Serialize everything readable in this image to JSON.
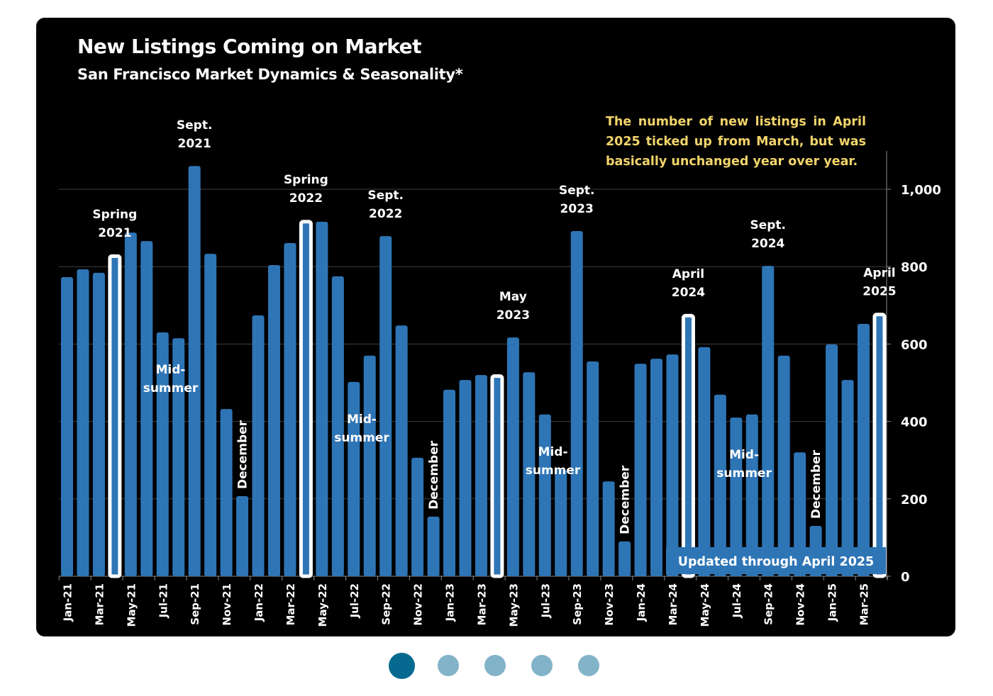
{
  "colors": {
    "background": "#000000",
    "bar": "#2e75b6",
    "highlight_bar": "#ffffff",
    "callout_text": "#f2d46b",
    "gridline": "#404040",
    "dot_active": "#066a90",
    "dot_inactive": "#82b3c8"
  },
  "pagination": {
    "count": 5,
    "active_index": 0
  },
  "chart_data": {
    "type": "bar",
    "title": "New Listings Coming on Market",
    "subtitle": "San Francisco Market Dynamics & Seasonality*",
    "callout": "The number of new listings in April 2025 ticked up from March, but was basically unchanged year over year.",
    "footer_banner": "Updated through April 2025",
    "xlabel": "",
    "ylabel": "",
    "ylim": [
      0,
      1100
    ],
    "y_axis_position": "right",
    "y_ticks": [
      0,
      200,
      400,
      600,
      800,
      1000
    ],
    "y_tick_labels": [
      "0",
      "200",
      "400",
      "600",
      "800",
      "1,000"
    ],
    "grid": true,
    "categories": [
      "Jan-21",
      "Feb-21",
      "Mar-21",
      "Apr-21",
      "May-21",
      "Jun-21",
      "Jul-21",
      "Aug-21",
      "Sep-21",
      "Oct-21",
      "Nov-21",
      "Dec-21",
      "Jan-22",
      "Feb-22",
      "Mar-22",
      "Apr-22",
      "May-22",
      "Jun-22",
      "Jul-22",
      "Aug-22",
      "Sep-22",
      "Oct-22",
      "Nov-22",
      "Dec-22",
      "Jan-23",
      "Feb-23",
      "Mar-23",
      "Apr-23",
      "May-23",
      "Jun-23",
      "Jul-23",
      "Aug-23",
      "Sep-23",
      "Oct-23",
      "Nov-23",
      "Dec-23",
      "Jan-24",
      "Feb-24",
      "Mar-24",
      "Apr-24",
      "May-24",
      "Jun-24",
      "Jul-24",
      "Aug-24",
      "Sep-24",
      "Oct-24",
      "Nov-24",
      "Dec-24",
      "Jan-25",
      "Feb-25",
      "Mar-25",
      "Apr-25"
    ],
    "x_tick_labels_every": 2,
    "values": [
      773,
      793,
      784,
      830,
      888,
      866,
      630,
      615,
      1060,
      833,
      432,
      207,
      674,
      804,
      861,
      919,
      916,
      775,
      502,
      570,
      879,
      648,
      306,
      154,
      482,
      507,
      520,
      520,
      617,
      527,
      418,
      275,
      892,
      555,
      245,
      90,
      549,
      562,
      573,
      676,
      592,
      469,
      410,
      418,
      802,
      570,
      320,
      130,
      599,
      507,
      652,
      679
    ],
    "highlighted": [
      "Apr-21",
      "Apr-22",
      "Apr-23",
      "Apr-24",
      "Apr-25"
    ],
    "annotations": [
      {
        "text": "Spring\n2021",
        "category": "Apr-21",
        "rotated": false
      },
      {
        "text": "Sept.\n2021",
        "category": "Sep-21",
        "rotated": false
      },
      {
        "text": "Mid-\nsummer",
        "category": "Jul-21",
        "rotated": false,
        "placement": "inside"
      },
      {
        "text": "December",
        "category": "Dec-21",
        "rotated": true
      },
      {
        "text": "Spring\n2022",
        "category": "Apr-22",
        "rotated": false
      },
      {
        "text": "Sept.\n2022",
        "category": "Sep-22",
        "rotated": false
      },
      {
        "text": "Mid-\nsummer",
        "category": "Jul-22",
        "rotated": false,
        "placement": "inside"
      },
      {
        "text": "December",
        "category": "Dec-22",
        "rotated": true
      },
      {
        "text": "May\n2023",
        "category": "May-23",
        "rotated": false
      },
      {
        "text": "Sept.\n2023",
        "category": "Sep-23",
        "rotated": false
      },
      {
        "text": "Mid-\nsummer",
        "category": "Jul-23",
        "rotated": false,
        "placement": "inside"
      },
      {
        "text": "December",
        "category": "Dec-23",
        "rotated": true
      },
      {
        "text": "April\n2024",
        "category": "Apr-24",
        "rotated": false
      },
      {
        "text": "Sept.\n2024",
        "category": "Sep-24",
        "rotated": false
      },
      {
        "text": "Mid-\nsummer",
        "category": "Jul-24",
        "rotated": false,
        "placement": "inside"
      },
      {
        "text": "December",
        "category": "Dec-24",
        "rotated": true
      },
      {
        "text": "April\n2025",
        "category": "Apr-25",
        "rotated": false
      }
    ]
  }
}
